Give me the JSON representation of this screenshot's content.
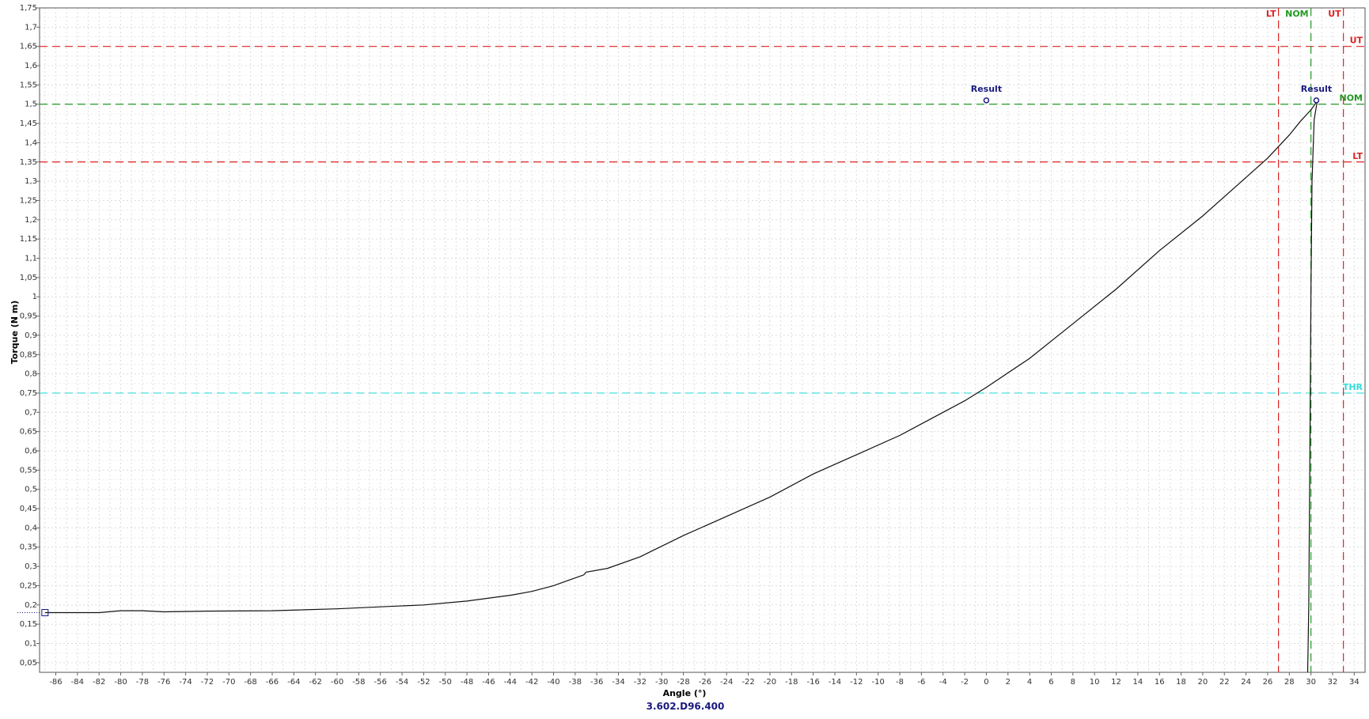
{
  "chart_data": {
    "type": "line",
    "xlabel": "Angle (°)",
    "ylabel": "Torque (N m)",
    "footer": "3.602.D96.400",
    "xlim": [
      -87.5,
      35
    ],
    "ylim": [
      0.025,
      1.75
    ],
    "grid": true,
    "x_ticks": [
      -86,
      -84,
      -82,
      -80,
      -78,
      -76,
      -74,
      -72,
      -70,
      -68,
      -66,
      -64,
      -62,
      -60,
      -58,
      -56,
      -54,
      -52,
      -50,
      -48,
      -46,
      -44,
      -42,
      -40,
      -38,
      -36,
      -34,
      -32,
      -30,
      -28,
      -26,
      -24,
      -22,
      -20,
      -18,
      -16,
      -14,
      -12,
      -10,
      -8,
      -6,
      -4,
      -2,
      0,
      2,
      4,
      6,
      8,
      10,
      12,
      14,
      16,
      18,
      20,
      22,
      24,
      26,
      28,
      30,
      32,
      34
    ],
    "y_ticks": [
      "0,05",
      "0,1",
      "0,15",
      "0,2",
      "0,25",
      "0,3",
      "0,35",
      "0,4",
      "0,45",
      "0,5",
      "0,55",
      "0,6",
      "0,65",
      "0,7",
      "0,75",
      "0,8",
      "0,85",
      "0,9",
      "0,95",
      "1",
      "1,05",
      "1,1",
      "1,15",
      "1,2",
      "1,25",
      "1,3",
      "1,35",
      "1,4",
      "1,45",
      "1,5",
      "1,55",
      "1,6",
      "1,65",
      "1,7",
      "1,75"
    ],
    "horizontal_lines": [
      {
        "label": "UT",
        "y": 1.65,
        "color": "#dd2222"
      },
      {
        "label": "NOM",
        "y": 1.5,
        "color": "#229922"
      },
      {
        "label": "LT",
        "y": 1.35,
        "color": "#dd2222"
      },
      {
        "label": "THR",
        "y": 0.75,
        "color": "#33dddd"
      }
    ],
    "vertical_lines": [
      {
        "label": "LT",
        "x": 27,
        "color": "#dd2222"
      },
      {
        "label": "NOM",
        "x": 30,
        "color": "#229922"
      },
      {
        "label": "UT",
        "x": 33,
        "color": "#dd2222"
      }
    ],
    "result_points": [
      {
        "label": "Result",
        "x": 0,
        "y": 1.51
      },
      {
        "label": "Result",
        "x": 30.5,
        "y": 1.51
      }
    ],
    "start_marker": {
      "x": -87,
      "y": 0.18
    },
    "curve": [
      [
        -87,
        0.18
      ],
      [
        -82,
        0.18
      ],
      [
        -80,
        0.185
      ],
      [
        -78,
        0.185
      ],
      [
        -76,
        0.182
      ],
      [
        -72,
        0.184
      ],
      [
        -66,
        0.185
      ],
      [
        -60,
        0.19
      ],
      [
        -56,
        0.195
      ],
      [
        -52,
        0.2
      ],
      [
        -48,
        0.21
      ],
      [
        -44,
        0.225
      ],
      [
        -42,
        0.235
      ],
      [
        -40,
        0.25
      ],
      [
        -38.5,
        0.265
      ],
      [
        -37.2,
        0.278
      ],
      [
        -37.0,
        0.285
      ],
      [
        -35,
        0.295
      ],
      [
        -32,
        0.325
      ],
      [
        -28,
        0.38
      ],
      [
        -24,
        0.43
      ],
      [
        -20,
        0.48
      ],
      [
        -16,
        0.54
      ],
      [
        -12,
        0.59
      ],
      [
        -8,
        0.64
      ],
      [
        -4,
        0.7
      ],
      [
        -2,
        0.73
      ],
      [
        0,
        0.765
      ],
      [
        4,
        0.84
      ],
      [
        8,
        0.93
      ],
      [
        12,
        1.02
      ],
      [
        16,
        1.12
      ],
      [
        20,
        1.21
      ],
      [
        24,
        1.31
      ],
      [
        26,
        1.36
      ],
      [
        27,
        1.39
      ],
      [
        28,
        1.42
      ],
      [
        29,
        1.455
      ],
      [
        30,
        1.485
      ],
      [
        30.5,
        1.505
      ],
      [
        30.6,
        1.51
      ],
      [
        30.3,
        1.46
      ],
      [
        30.1,
        1.3
      ],
      [
        30.0,
        1.0
      ],
      [
        29.9,
        0.6
      ],
      [
        29.8,
        0.2
      ],
      [
        29.7,
        0.025
      ]
    ]
  }
}
